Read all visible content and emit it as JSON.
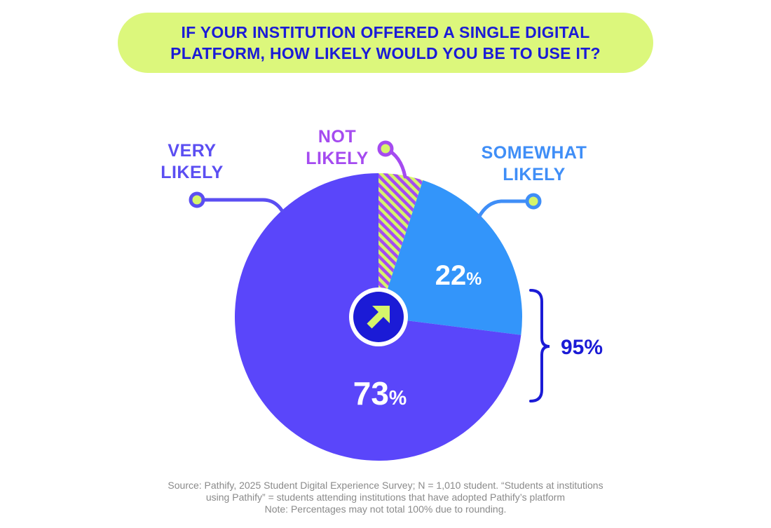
{
  "title_lines": [
    "IF YOUR INSTITUTION OFFERED A SINGLE DIGITAL",
    "PLATFORM, HOW LIKELY WOULD YOU BE TO USE IT?"
  ],
  "chart_data": {
    "type": "pie",
    "title": "IF YOUR INSTITUTION OFFERED A SINGLE DIGITAL PLATFORM, HOW LIKELY WOULD YOU BE TO USE IT?",
    "slices": [
      {
        "label_lines": [
          "NOT",
          "LIKELY"
        ],
        "value": 5,
        "value_label": "",
        "color": "#a54bf0",
        "pattern": "hatched-lime"
      },
      {
        "label_lines": [
          "SOMEWHAT",
          "LIKELY"
        ],
        "value": 22,
        "value_label": "22",
        "color": "#3395fa"
      },
      {
        "label_lines": [
          "VERY",
          "LIKELY"
        ],
        "value": 73,
        "value_label": "73",
        "color": "#5a46fa"
      }
    ],
    "percent_sign": "%",
    "bracket_total": "95%",
    "colors": {
      "label_very": "#5b4ef2",
      "label_not": "#a54bf0",
      "label_somewhat": "#3f8ef7",
      "lime": "#d6f56a",
      "navy": "#1b1bd6"
    }
  },
  "center_icon": "arrow-up-right-icon",
  "source_lines": [
    "Source: Pathify, 2025 Student Digital Experience Survey; N = 1,010 student. “Students at institutions",
    "using Pathify” = students attending institutions that have adopted Pathify’s platform",
    "Note: Percentages may not total 100% due to rounding."
  ]
}
